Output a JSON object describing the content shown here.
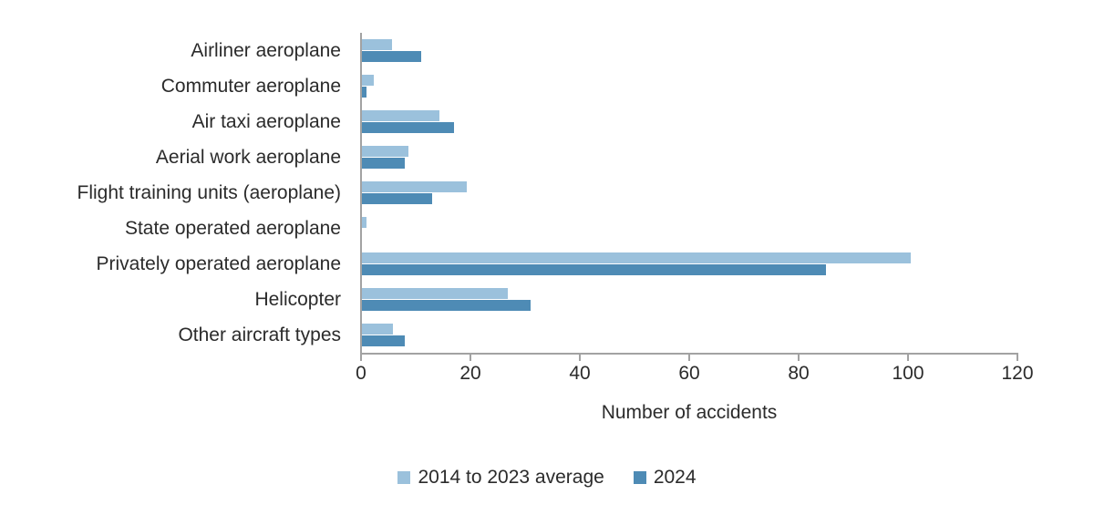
{
  "chart_data": {
    "type": "bar",
    "orientation": "horizontal",
    "categories": [
      "Airliner aeroplane",
      "Commuter aeroplane",
      "Air taxi aeroplane",
      "Aerial work aeroplane",
      "Flight training units (aeroplane)",
      "State operated aeroplane",
      "Privately operated aeroplane",
      "Helicopter",
      "Other aircraft types"
    ],
    "series": [
      {
        "name": "2014 to 2023 average",
        "color": "#9BC1DC",
        "values": [
          5.7,
          2.4,
          14.4,
          8.7,
          19.4,
          1.0,
          100.5,
          26.8,
          5.9
        ]
      },
      {
        "name": "2024",
        "color": "#4E8BB5",
        "values": [
          11,
          1,
          17,
          8,
          13,
          0,
          85,
          31,
          8
        ]
      }
    ],
    "xlabel": "Number of accidents",
    "xlim": [
      0,
      120
    ],
    "xticks": [
      0,
      20,
      40,
      60,
      80,
      100,
      120
    ],
    "grid": false,
    "legend_position": "bottom-center"
  },
  "colors": {
    "axis": "#a2a2a2",
    "text": "#2b2b2b"
  }
}
